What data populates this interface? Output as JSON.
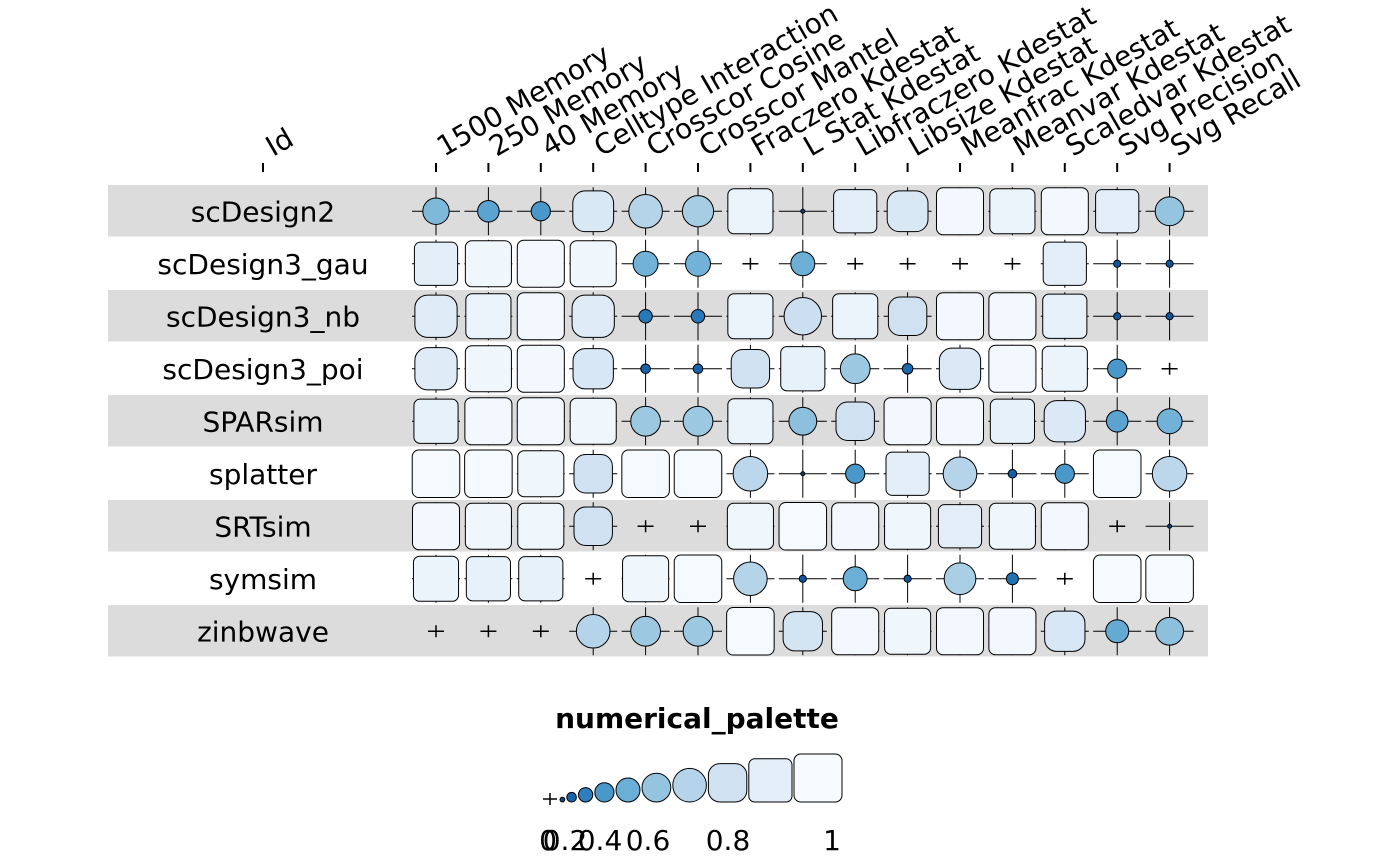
{
  "chart_data": {
    "type": "heatmap",
    "id_column_label": "Id",
    "columns": [
      "1500 Memory",
      "250 Memory",
      "40 Memory",
      "Celltype Interaction",
      "Crosscor Cosine",
      "Crosscor Mantel",
      "Fraczero Kdestat",
      "L Stat Kdestat",
      "Libfraczero Kdestat",
      "Libsize Kdestat",
      "Meanfrac Kdestat",
      "Meanvar Kdestat",
      "Scaledvar Kdestat",
      "Svg Precision",
      "Svg Recall"
    ],
    "rows": [
      {
        "id": "scDesign2",
        "values": [
          0.55,
          0.45,
          0.4,
          0.85,
          0.7,
          0.65,
          0.94,
          0.08,
          0.9,
          0.85,
          0.98,
          0.94,
          0.98,
          0.9,
          0.6
        ]
      },
      {
        "id": "scDesign3_gau",
        "values": [
          0.9,
          0.96,
          0.98,
          0.96,
          0.52,
          0.52,
          0.04,
          0.5,
          0.04,
          0.04,
          0.04,
          0.04,
          0.9,
          0.15,
          0.15
        ]
      },
      {
        "id": "scDesign3_nb",
        "values": [
          0.88,
          0.94,
          0.98,
          0.88,
          0.28,
          0.28,
          0.94,
          0.78,
          0.94,
          0.8,
          0.98,
          0.98,
          0.92,
          0.15,
          0.15
        ]
      },
      {
        "id": "scDesign3_poi",
        "values": [
          0.88,
          0.96,
          0.98,
          0.84,
          0.2,
          0.2,
          0.8,
          0.92,
          0.62,
          0.22,
          0.86,
          0.98,
          0.94,
          0.4,
          0.04
        ]
      },
      {
        "id": "SPARsim",
        "values": [
          0.92,
          0.98,
          0.98,
          0.96,
          0.62,
          0.62,
          0.94,
          0.58,
          0.8,
          0.98,
          0.98,
          0.92,
          0.86,
          0.45,
          0.52
        ]
      },
      {
        "id": "splatter",
        "values": [
          0.99,
          0.99,
          0.96,
          0.8,
          0.99,
          0.99,
          0.72,
          0.06,
          0.4,
          0.9,
          0.7,
          0.18,
          0.4,
          0.99,
          0.72
        ]
      },
      {
        "id": "SRTsim",
        "values": [
          0.98,
          0.96,
          0.96,
          0.8,
          0.04,
          0.04,
          0.96,
          0.99,
          0.98,
          0.96,
          0.9,
          0.96,
          0.98,
          0.04,
          0.08
        ]
      },
      {
        "id": "symsim",
        "values": [
          0.94,
          0.92,
          0.92,
          0.04,
          0.96,
          0.99,
          0.7,
          0.15,
          0.5,
          0.15,
          0.66,
          0.25,
          0.04,
          0.99,
          0.99
        ]
      },
      {
        "id": "zinbwave",
        "values": [
          0.04,
          0.04,
          0.04,
          0.7,
          0.62,
          0.62,
          0.99,
          0.82,
          0.98,
          0.96,
          0.98,
          0.98,
          0.84,
          0.48,
          0.58
        ]
      }
    ],
    "legend": {
      "title": "numerical_palette",
      "tick_labels": [
        "0",
        "0.2",
        "0.4",
        "0.6",
        "0.8",
        "1"
      ],
      "tick_values": [
        0,
        0.2,
        0.4,
        0.6,
        0.8,
        1
      ],
      "steps": [
        0,
        0.1,
        0.2,
        0.3,
        0.4,
        0.5,
        0.6,
        0.7,
        0.8,
        0.9,
        1
      ]
    },
    "encoding": "circle radius grows with value, corners square off near 1; fill from dark blue (low) to near white (high)",
    "colors": {
      "palette": [
        "#08306b",
        "#08519c",
        "#2171b5",
        "#4292c6",
        "#6baed6",
        "#9ecae1",
        "#c6dbef",
        "#deebf7",
        "#f7fbff"
      ],
      "row_band": "#dcdcdc",
      "stroke": "#000000"
    }
  }
}
